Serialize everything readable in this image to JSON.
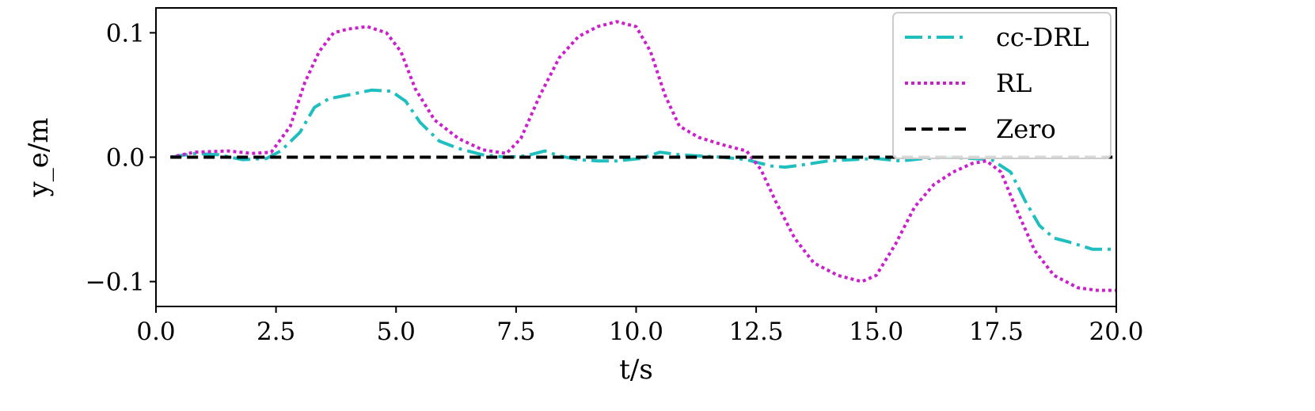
{
  "chart_data": {
    "type": "line",
    "xlabel": "t/s",
    "ylabel": "y_e/m",
    "xlim": [
      0,
      20
    ],
    "ylim": [
      -0.12,
      0.12
    ],
    "xticks": [
      {
        "value": 0,
        "label": "0.0"
      },
      {
        "value": 2.5,
        "label": "2.5"
      },
      {
        "value": 5,
        "label": "5.0"
      },
      {
        "value": 7.5,
        "label": "7.5"
      },
      {
        "value": 10,
        "label": "10.0"
      },
      {
        "value": 12.5,
        "label": "12.5"
      },
      {
        "value": 15,
        "label": "15.0"
      },
      {
        "value": 17.5,
        "label": "17.5"
      },
      {
        "value": 20,
        "label": "20.0"
      }
    ],
    "yticks": [
      {
        "value": 0.1,
        "label": "0.1"
      },
      {
        "value": 0.0,
        "label": "0.0"
      },
      {
        "value": -0.1,
        "label": "−0.1"
      }
    ],
    "grid": false,
    "legend_position": "top-right",
    "series": [
      {
        "name": "cc-DRL",
        "color": "#1fbfbf",
        "style": "dashdot",
        "x": [
          0.3,
          0.8,
          1.3,
          1.8,
          2.3,
          2.6,
          3.0,
          3.3,
          3.6,
          4.0,
          4.5,
          4.9,
          5.2,
          5.5,
          5.9,
          6.3,
          6.8,
          7.3,
          7.7,
          8.1,
          8.4,
          8.8,
          9.2,
          9.6,
          10.1,
          10.5,
          10.9,
          11.3,
          11.8,
          12.3,
          12.8,
          13.1,
          13.5,
          14.0,
          14.5,
          15.0,
          15.5,
          16.0,
          16.5,
          17.0,
          17.4,
          17.8,
          18.1,
          18.4,
          18.7,
          19.0,
          19.5,
          20.0
        ],
        "values": [
          0.0,
          0.003,
          0.002,
          -0.002,
          -0.001,
          0.005,
          0.02,
          0.04,
          0.047,
          0.05,
          0.054,
          0.053,
          0.045,
          0.028,
          0.013,
          0.007,
          0.002,
          0.0,
          0.001,
          0.005,
          0.001,
          -0.002,
          -0.003,
          -0.003,
          -0.001,
          0.004,
          0.002,
          0.001,
          0.0,
          -0.002,
          -0.007,
          -0.008,
          -0.006,
          -0.003,
          -0.002,
          -0.001,
          -0.003,
          -0.001,
          0.0,
          -0.001,
          -0.002,
          -0.012,
          -0.035,
          -0.055,
          -0.065,
          -0.068,
          -0.074,
          -0.074
        ]
      },
      {
        "name": "RL",
        "color": "#cc1fcc",
        "style": "dotted",
        "x": [
          0.3,
          0.8,
          1.5,
          2.0,
          2.4,
          2.8,
          3.1,
          3.4,
          3.7,
          4.0,
          4.4,
          4.8,
          5.1,
          5.4,
          5.8,
          6.3,
          6.8,
          7.3,
          7.6,
          8.0,
          8.4,
          8.8,
          9.2,
          9.6,
          10.0,
          10.3,
          10.6,
          10.9,
          11.3,
          11.8,
          12.3,
          12.6,
          12.9,
          13.3,
          13.7,
          14.2,
          14.7,
          15.0,
          15.4,
          15.8,
          16.2,
          16.6,
          17.0,
          17.3,
          17.6,
          17.9,
          18.3,
          18.7,
          19.2,
          19.6,
          20.0
        ],
        "values": [
          0.0,
          0.004,
          0.005,
          0.003,
          0.004,
          0.025,
          0.06,
          0.085,
          0.1,
          0.103,
          0.105,
          0.1,
          0.085,
          0.055,
          0.03,
          0.015,
          0.006,
          0.003,
          0.015,
          0.05,
          0.08,
          0.097,
          0.105,
          0.109,
          0.105,
          0.085,
          0.05,
          0.025,
          0.016,
          0.01,
          0.005,
          -0.01,
          -0.035,
          -0.065,
          -0.085,
          -0.095,
          -0.1,
          -0.095,
          -0.07,
          -0.04,
          -0.022,
          -0.012,
          -0.005,
          -0.003,
          -0.012,
          -0.04,
          -0.075,
          -0.095,
          -0.105,
          -0.107,
          -0.107
        ]
      },
      {
        "name": "Zero",
        "color": "#000000",
        "style": "dashed",
        "x": [
          0.3,
          20.0
        ],
        "values": [
          0.0,
          0.0
        ]
      }
    ]
  }
}
